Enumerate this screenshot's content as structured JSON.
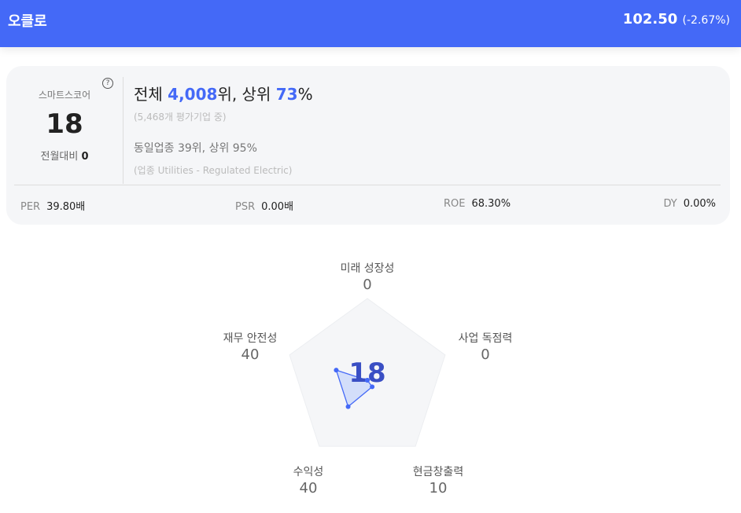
{
  "header": {
    "title": "오클로",
    "price": "102.50",
    "change": "(-2.67%)"
  },
  "score_card": {
    "label": "스마트스코어",
    "help_icon": "question-icon",
    "score": "18",
    "mom_label": "전월대비",
    "mom_value": "0",
    "rank_prefix": "전체 ",
    "rank": "4,008",
    "rank_mid": "위, 상위 ",
    "percentile": "73",
    "percent_sign": "%",
    "total_note": "(5,468개 평가기업 중)",
    "industry_rank": "동일업종 39위, 상위 95%",
    "industry_note": "(업종 Utilities - Regulated Electric)"
  },
  "metrics": [
    {
      "key": "PER",
      "value": "39.80배"
    },
    {
      "key": "PSR",
      "value": "0.00배"
    },
    {
      "key": "ROE",
      "value": "68.30%"
    },
    {
      "key": "DY",
      "value": "0.00%"
    }
  ],
  "chart_data": {
    "type": "radar",
    "center_label": "18",
    "max": 100,
    "axes": [
      {
        "label": "미래 성장성",
        "value": 0
      },
      {
        "label": "사업 독점력",
        "value": 0
      },
      {
        "label": "현금창출력",
        "value": 10
      },
      {
        "label": "수익성",
        "value": 40
      },
      {
        "label": "재무 안전성",
        "value": 40
      }
    ],
    "colors": {
      "fill": "#cfdcfa",
      "stroke": "#4469f7",
      "bg": "#f5f6f8",
      "center": "#3a4fc4"
    }
  }
}
